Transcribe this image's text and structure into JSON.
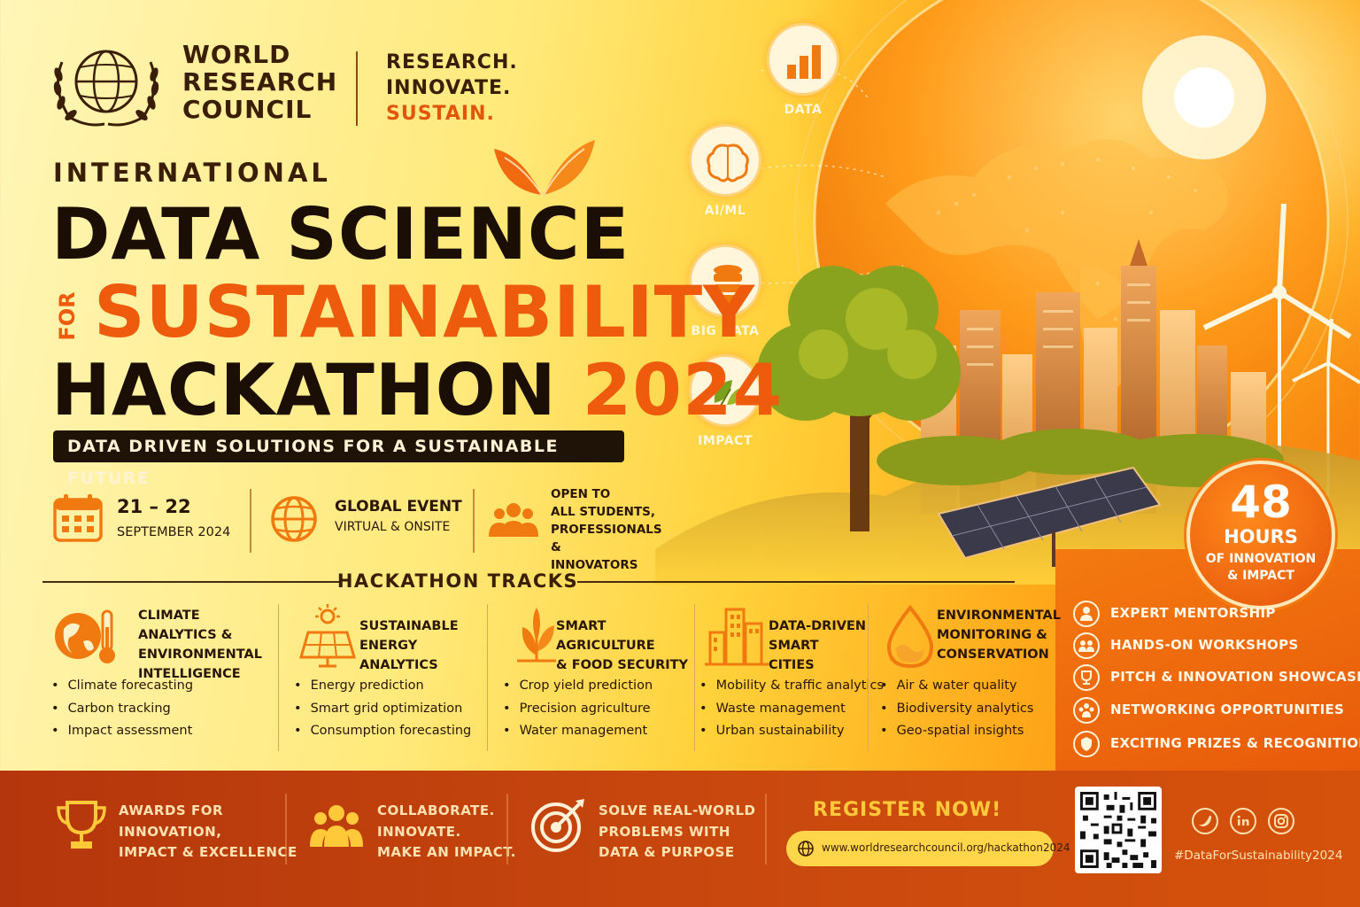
{
  "brand": {
    "org_line1": "WORLD",
    "org_line2": "RESEARCH",
    "org_line3": "COUNCIL",
    "tag1": "RESEARCH.",
    "tag2": "INNOVATE.",
    "tag3": "SUSTAIN."
  },
  "title": {
    "kicker": "INTERNATIONAL",
    "line1": "DATA SCIENCE",
    "for_word": "FOR",
    "line2": "SUSTAINABILITY",
    "line3": "HACKATHON",
    "year": "2024",
    "subtitle": "DATA DRIVEN SOLUTIONS FOR A SUSTAINABLE FUTURE"
  },
  "info": {
    "date": "21 – 22",
    "month": "SEPTEMBER 2024",
    "event": "GLOBAL EVENT",
    "mode": "VIRTUAL & ONSITE",
    "open1": "OPEN TO",
    "open2": "ALL STUDENTS,",
    "open3": "PROFESSIONALS &",
    "open4": "INNOVATORS"
  },
  "features": [
    "DATA",
    "AI/ML",
    "BIG DATA",
    "IMPACT"
  ],
  "hours": {
    "num": "48",
    "unit": "HOURS",
    "sub1": "OF INNOVATION",
    "sub2": "& IMPACT"
  },
  "tracks_heading": "HACKATHON TRACKS",
  "tracks": [
    {
      "title": [
        "CLIMATE ANALYTICS &",
        "ENVIRONMENTAL",
        "INTELLIGENCE"
      ],
      "items": [
        "Climate forecasting",
        "Carbon tracking",
        "Impact assessment"
      ]
    },
    {
      "title": [
        "SUSTAINABLE",
        "ENERGY ANALYTICS"
      ],
      "items": [
        "Energy prediction",
        "Smart grid optimization",
        "Consumption forecasting"
      ]
    },
    {
      "title": [
        "SMART AGRICULTURE",
        "& FOOD SECURITY"
      ],
      "items": [
        "Crop yield prediction",
        "Precision agriculture",
        "Water management"
      ]
    },
    {
      "title": [
        "DATA-DRIVEN",
        "SMART CITIES"
      ],
      "items": [
        "Mobility & traffic analytics",
        "Waste management",
        "Urban sustainability"
      ]
    },
    {
      "title": [
        "ENVIRONMENTAL",
        "MONITORING &",
        "CONSERVATION"
      ],
      "items": [
        "Air & water quality",
        "Biodiversity analytics",
        "Geo-spatial insights"
      ]
    }
  ],
  "benefits": [
    "EXPERT MENTORSHIP",
    "HANDS-ON WORKSHOPS",
    "PITCH & INNOVATION SHOWCASE",
    "NETWORKING OPPORTUNITIES",
    "EXCITING PRIZES & RECOGNITION"
  ],
  "footer": {
    "awards": [
      "AWARDS FOR",
      "INNOVATION,",
      "IMPACT & EXCELLENCE"
    ],
    "collab": [
      "COLLABORATE.",
      "INNOVATE.",
      "MAKE AN IMPACT."
    ],
    "solve": [
      "SOLVE REAL-WORLD",
      "PROBLEMS WITH",
      "DATA & PURPOSE"
    ],
    "register": "REGISTER NOW!",
    "url": "www.worldresearchcouncil.org/hackathon2024",
    "social": [
      "twitter-icon",
      "linkedin-icon",
      "instagram-icon"
    ],
    "hashtag": "#DataForSustainability2024"
  },
  "colors": {
    "accent": "#ef5b0c",
    "dark": "#1b0f05",
    "footer": "#b4360c",
    "highlight": "#ffc93a"
  }
}
